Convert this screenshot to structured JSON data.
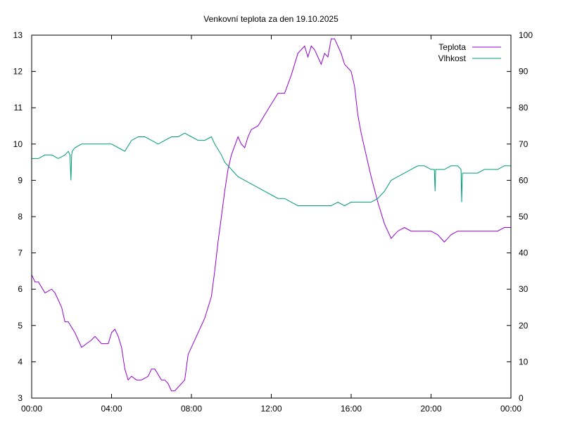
{
  "chart_data": {
    "type": "line",
    "title": "Venkovní teplota za den 19.10.2025",
    "xlabel": "",
    "ylabel": "",
    "y2label": "",
    "x_range": [
      "00:00",
      "24:00"
    ],
    "x_ticks": [
      "00:00",
      "04:00",
      "08:00",
      "12:00",
      "16:00",
      "20:00",
      "00:00"
    ],
    "ylim": [
      3,
      13
    ],
    "y_ticks": [
      "3",
      "4",
      "5",
      "6",
      "7",
      "8",
      "9",
      "10",
      "11",
      "12",
      "13"
    ],
    "y2lim": [
      0,
      100
    ],
    "y2_ticks": [
      "0",
      "10",
      "20",
      "30",
      "40",
      "50",
      "60",
      "70",
      "80",
      "90",
      "100"
    ],
    "grid": false,
    "legend_position": "top-right",
    "series": [
      {
        "name": "Teplota",
        "axis": "left",
        "color": "#9400d3",
        "x": [
          "00:00",
          "00:10",
          "00:20",
          "00:40",
          "01:00",
          "01:10",
          "01:30",
          "01:40",
          "01:50",
          "02:10",
          "02:20",
          "02:30",
          "02:45",
          "03:00",
          "03:10",
          "03:20",
          "03:30",
          "03:40",
          "03:50",
          "04:00",
          "04:10",
          "04:20",
          "04:30",
          "04:40",
          "04:50",
          "05:00",
          "05:15",
          "05:30",
          "05:50",
          "06:00",
          "06:10",
          "06:30",
          "06:40",
          "06:50",
          "07:00",
          "07:10",
          "07:20",
          "07:30",
          "07:40",
          "07:50",
          "08:00",
          "08:20",
          "08:40",
          "09:00",
          "09:10",
          "09:20",
          "09:30",
          "09:40",
          "09:50",
          "10:00",
          "10:20",
          "10:30",
          "10:40",
          "10:50",
          "11:00",
          "11:20",
          "11:40",
          "12:00",
          "12:20",
          "12:40",
          "13:00",
          "13:10",
          "13:20",
          "13:40",
          "13:50",
          "14:00",
          "14:10",
          "14:20",
          "14:30",
          "14:40",
          "14:50",
          "15:00",
          "15:10",
          "15:20",
          "15:30",
          "15:40",
          "15:50",
          "16:00",
          "16:10",
          "16:20",
          "16:30",
          "16:40",
          "16:50",
          "17:00",
          "17:20",
          "17:40",
          "18:00",
          "18:20",
          "18:40",
          "19:00",
          "19:20",
          "19:40",
          "20:00",
          "20:20",
          "20:40",
          "21:00",
          "21:20",
          "21:40",
          "22:00",
          "22:20",
          "22:40",
          "23:00",
          "23:20",
          "23:40",
          "24:00"
        ],
        "values": [
          6.4,
          6.2,
          6.2,
          5.9,
          6.0,
          5.9,
          5.5,
          5.1,
          5.1,
          4.8,
          4.6,
          4.4,
          4.5,
          4.6,
          4.7,
          4.6,
          4.5,
          4.5,
          4.5,
          4.8,
          4.9,
          4.7,
          4.4,
          3.8,
          3.5,
          3.6,
          3.5,
          3.5,
          3.6,
          3.8,
          3.8,
          3.5,
          3.5,
          3.4,
          3.2,
          3.2,
          3.3,
          3.4,
          3.5,
          4.2,
          4.4,
          4.8,
          5.2,
          5.8,
          6.5,
          7.3,
          8.0,
          8.7,
          9.3,
          9.7,
          10.2,
          10.0,
          9.9,
          10.2,
          10.4,
          10.5,
          10.8,
          11.1,
          11.4,
          11.4,
          11.9,
          12.2,
          12.5,
          12.7,
          12.4,
          12.7,
          12.6,
          12.4,
          12.2,
          12.5,
          12.4,
          12.9,
          12.9,
          12.7,
          12.5,
          12.2,
          12.1,
          12.0,
          11.6,
          10.8,
          10.3,
          9.9,
          9.5,
          9.1,
          8.4,
          7.8,
          7.4,
          7.6,
          7.7,
          7.6,
          7.6,
          7.6,
          7.6,
          7.5,
          7.3,
          7.5,
          7.6,
          7.6,
          7.6,
          7.6,
          7.6,
          7.6,
          7.6,
          7.7,
          7.7
        ]
      },
      {
        "name": "Vlhkost",
        "axis": "right",
        "color": "#009e73",
        "x": [
          "00:00",
          "00:20",
          "00:40",
          "01:00",
          "01:20",
          "01:40",
          "01:50",
          "01:55",
          "01:58",
          "02:00",
          "02:02",
          "02:10",
          "02:30",
          "03:00",
          "03:20",
          "03:40",
          "04:00",
          "04:20",
          "04:40",
          "05:00",
          "05:20",
          "05:40",
          "06:00",
          "06:20",
          "06:40",
          "07:00",
          "07:20",
          "07:40",
          "08:00",
          "08:20",
          "08:40",
          "09:00",
          "09:10",
          "09:30",
          "09:40",
          "10:00",
          "10:20",
          "10:40",
          "11:00",
          "11:20",
          "11:40",
          "12:00",
          "12:20",
          "12:40",
          "13:00",
          "13:20",
          "13:40",
          "14:00",
          "14:20",
          "14:40",
          "15:00",
          "15:20",
          "15:40",
          "16:00",
          "16:20",
          "16:40",
          "17:00",
          "17:20",
          "17:40",
          "18:00",
          "18:20",
          "18:40",
          "19:00",
          "19:20",
          "19:40",
          "20:00",
          "20:10",
          "20:12",
          "20:14",
          "20:20",
          "20:40",
          "21:00",
          "21:20",
          "21:30",
          "21:32",
          "21:34",
          "21:40",
          "22:00",
          "22:20",
          "22:40",
          "23:00",
          "23:20",
          "23:40",
          "24:00"
        ],
        "values": [
          66,
          66,
          67,
          67,
          66,
          67,
          68,
          67,
          60,
          67,
          68,
          69,
          70,
          70,
          70,
          70,
          70,
          69,
          68,
          71,
          72,
          72,
          71,
          70,
          71,
          72,
          72,
          73,
          72,
          71,
          71,
          72,
          70,
          67,
          65,
          63,
          61,
          60,
          59,
          58,
          57,
          56,
          55,
          55,
          54,
          53,
          53,
          53,
          53,
          53,
          53,
          54,
          53,
          54,
          54,
          54,
          54,
          55,
          57,
          60,
          61,
          62,
          63,
          64,
          64,
          63,
          63,
          57,
          63,
          63,
          63,
          64,
          64,
          63,
          54,
          62,
          62,
          62,
          62,
          63,
          63,
          63,
          64,
          64
        ]
      }
    ]
  }
}
